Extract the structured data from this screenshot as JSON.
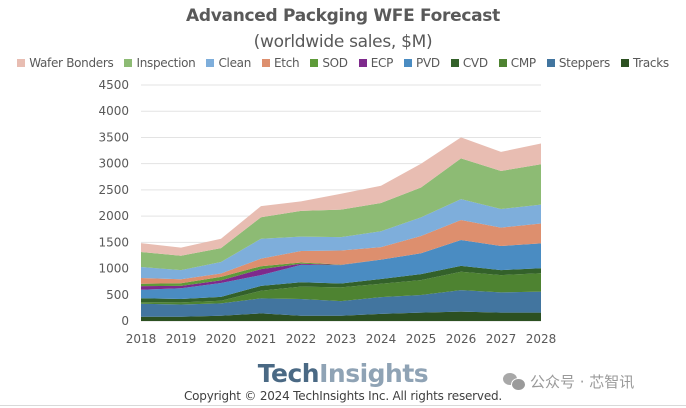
{
  "chart_data": {
    "type": "area",
    "stacked": true,
    "title": "Advanced Packging WFE Forecast",
    "subtitle": "(worldwide sales, $M)",
    "xlabel": "",
    "ylabel": "",
    "categories": [
      "2018",
      "2019",
      "2020",
      "2021",
      "2022",
      "2023",
      "2024",
      "2025",
      "2026",
      "2027",
      "2028"
    ],
    "ylim": [
      0,
      4500
    ],
    "yticks": [
      0,
      500,
      1000,
      1500,
      2000,
      2500,
      3000,
      3500,
      4000,
      4500
    ],
    "grid": true,
    "legend_position": "top",
    "series": [
      {
        "name": "Tracks",
        "color": "#2c5021",
        "values": [
          80,
          80,
          100,
          145,
          100,
          100,
          135,
          160,
          180,
          160,
          160
        ]
      },
      {
        "name": "Steppers",
        "color": "#42759f",
        "values": [
          250,
          235,
          235,
          285,
          320,
          280,
          320,
          335,
          410,
          385,
          400
        ]
      },
      {
        "name": "CMP",
        "color": "#4e8331",
        "values": [
          30,
          40,
          50,
          145,
          235,
          260,
          255,
          285,
          350,
          330,
          350
        ]
      },
      {
        "name": "CVD",
        "color": "#33612a",
        "values": [
          75,
          65,
          75,
          95,
          85,
          75,
          90,
          115,
          110,
          95,
          95
        ]
      },
      {
        "name": "PVD",
        "color": "#4a8cc2",
        "values": [
          160,
          205,
          265,
          205,
          330,
          350,
          370,
          395,
          495,
          460,
          475
        ]
      },
      {
        "name": "ECP",
        "color": "#7e2a8c",
        "values": [
          70,
          45,
          50,
          115,
          20,
          5,
          0,
          0,
          0,
          0,
          0
        ]
      },
      {
        "name": "SOD",
        "color": "#5e9b3a",
        "values": [
          45,
          50,
          65,
          55,
          25,
          5,
          0,
          0,
          0,
          0,
          0
        ]
      },
      {
        "name": "Etch",
        "color": "#dd8f6e",
        "values": [
          110,
          75,
          65,
          145,
          220,
          270,
          240,
          330,
          380,
          350,
          380
        ]
      },
      {
        "name": "Clean",
        "color": "#7eaedb",
        "values": [
          210,
          175,
          220,
          380,
          275,
          255,
          300,
          355,
          400,
          355,
          360
        ]
      },
      {
        "name": "Inspection",
        "color": "#8dbb74",
        "values": [
          285,
          275,
          265,
          410,
          490,
          525,
          540,
          570,
          775,
          725,
          770
        ]
      },
      {
        "name": "Wafer Bonders",
        "color": "#e8bdb2",
        "values": [
          170,
          155,
          180,
          210,
          180,
          300,
          330,
          455,
          400,
          365,
          395
        ]
      }
    ],
    "legend_order": [
      "Wafer Bonders",
      "Inspection",
      "Clean",
      "Etch",
      "SOD",
      "ECP",
      "PVD",
      "CVD",
      "CMP",
      "Steppers",
      "Tracks"
    ]
  },
  "footer": {
    "logo_part1": "Tech",
    "logo_part2": "Insights",
    "copyright": "Copyright © 2024 TechInsights Inc.  All rights reserved."
  },
  "watermark": {
    "icon": "wechat-icon",
    "text": "公众号 · 芯智讯"
  }
}
